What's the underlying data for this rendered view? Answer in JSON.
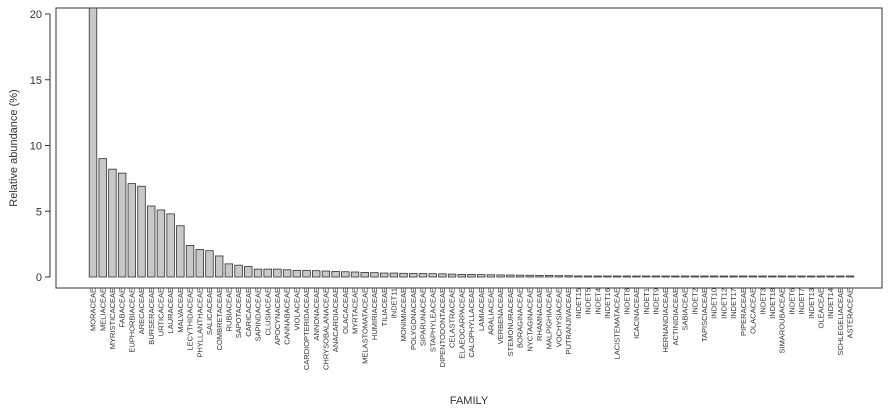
{
  "chart_data": {
    "type": "bar",
    "title": "",
    "xlabel": "FAMILY",
    "ylabel": "Relative abundance (%)",
    "ylim": [
      0,
      20.5
    ],
    "yticks": [
      0,
      5,
      10,
      15,
      20
    ],
    "grid": false,
    "colors": {
      "bar_fill": "#c8c8c8",
      "bar_stroke": "#303030",
      "axis": "#333333"
    },
    "categories": [
      "MORACEAE",
      "MELIACEAE",
      "MYRISTICACEAE",
      "FABACEAE",
      "EUPHORBIACEAE",
      "ARECACEAE",
      "BURSERACEAE",
      "URTICACEAE",
      "LAURACEAE",
      "MALVACEAE",
      "LECYTHIDACEAE",
      "PHYLLANTHACEAE",
      "SALICACEAE",
      "COMBRETACEAE",
      "RUBIACEAE",
      "SAPOTACEAE",
      "CARICACEAE",
      "SAPINDACEAE",
      "CLUSIACEAE",
      "APOCYNACEAE",
      "CANNABACEAE",
      "VIOLACEAE",
      "CARDIOPTERIDACEAE",
      "ANNONACEAE",
      "CHRYSOBALANACEAE",
      "ANACARDIACEAE",
      "OLACACEAE",
      "MYRTACEAE",
      "MELASTOMATACEAE",
      "HUMIRIACEAE",
      "TILIACEAE",
      "INDET11",
      "MONIMIACEAE",
      "POLYGONACEAE",
      "SIPARUNACEAE",
      "STAPHYLEACEAE",
      "DIPENTODONTACEAE",
      "CELASTRACEAE",
      "ELAEOCARPACEAE",
      "CALOPHYLLACEAE",
      "LAMIACEAE",
      "ARALIACEAE",
      "VERBENACEAE",
      "STEMONURACEAE",
      "BORAGINACEAE",
      "NYCTAGINACEAE",
      "RHAMNACEAE",
      "MALPIGHIACEAE",
      "VOCHYSIACEAE",
      "PUTRANJIVACEAE",
      "INDET15",
      "INDET5",
      "INDET4",
      "INDET16",
      "LACISTEMATACEAE",
      "INDET8",
      "ICACINACEAE",
      "INDET1",
      "INDET9",
      "HERNANDIACEAE",
      "ACTINIDIACEAE",
      "SABIACEAE",
      "INDET2",
      "TAPISCIACEAE",
      "INDET10",
      "INDET12",
      "INDET17",
      "PIPERACEAE",
      "OLACACEAE",
      "INDET3",
      "INDET18",
      "SIMAROUBACEAE",
      "INDET6",
      "INDET7",
      "INDET13",
      "OLEACEAE",
      "INDET14",
      "SCHLEGELIACEAE",
      "ASTERACEAE"
    ],
    "values": [
      20.5,
      9.0,
      8.2,
      7.9,
      7.1,
      6.9,
      5.4,
      5.1,
      4.8,
      3.9,
      2.4,
      2.1,
      2.0,
      1.6,
      1.0,
      0.9,
      0.8,
      0.6,
      0.6,
      0.6,
      0.55,
      0.5,
      0.5,
      0.48,
      0.45,
      0.42,
      0.4,
      0.38,
      0.35,
      0.33,
      0.3,
      0.3,
      0.28,
      0.27,
      0.26,
      0.25,
      0.24,
      0.22,
      0.2,
      0.2,
      0.18,
      0.17,
      0.16,
      0.15,
      0.14,
      0.13,
      0.12,
      0.12,
      0.1,
      0.1,
      0.08,
      0.08,
      0.07,
      0.07,
      0.06,
      0.06,
      0.06,
      0.05,
      0.05,
      0.05,
      0.05,
      0.05,
      0.05,
      0.05,
      0.05,
      0.05,
      0.05,
      0.05,
      0.05,
      0.05,
      0.05,
      0.05,
      0.05,
      0.05,
      0.05,
      0.05,
      0.05,
      0.05,
      0.05
    ]
  }
}
